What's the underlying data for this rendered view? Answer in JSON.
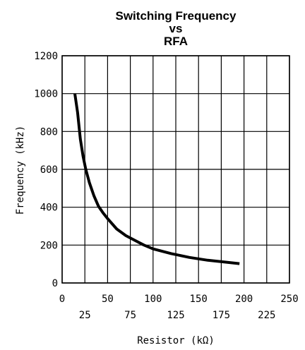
{
  "chart_data": {
    "type": "line",
    "title_lines": [
      "Switching Frequency",
      "vs",
      "RFA"
    ],
    "xlabel": "Resistor (kΩ)",
    "ylabel": "Frequency (kHz)",
    "xlim": [
      0,
      250
    ],
    "ylim": [
      0,
      1200
    ],
    "x_ticks_upper": [
      "0",
      "50",
      "100",
      "150",
      "200",
      "250"
    ],
    "x_ticks_lower": [
      "25",
      "75",
      "125",
      "175",
      "225"
    ],
    "y_ticks": [
      "0",
      "200",
      "400",
      "600",
      "800",
      "1000",
      "1200"
    ],
    "grid": true,
    "series": [
      {
        "x": [
          14,
          17,
          20,
          23,
          26,
          30,
          35,
          40,
          45,
          50,
          60,
          70,
          80,
          90,
          100,
          120,
          140,
          160,
          180,
          195
        ],
        "y": [
          1000,
          900,
          760,
          670,
          600,
          530,
          460,
          405,
          370,
          340,
          285,
          250,
          225,
          200,
          180,
          155,
          135,
          120,
          110,
          102
        ]
      }
    ]
  }
}
